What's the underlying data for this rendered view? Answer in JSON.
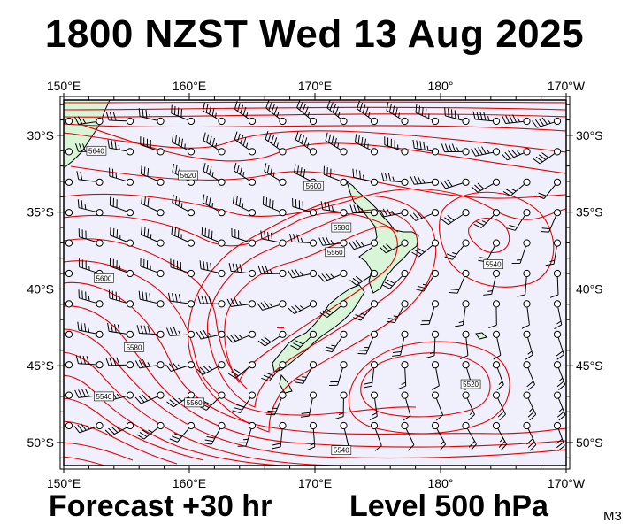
{
  "title": "1800 NZST Wed 13 Aug 2025",
  "footer": {
    "forecast": "Forecast +30 hr",
    "level": "Level 500 hPa",
    "code": "M3"
  },
  "map": {
    "lon_range": [
      150,
      190
    ],
    "lat_range": [
      -51.5,
      -27.7
    ],
    "lon_ticks": [
      {
        "lon": 150,
        "label": "150°E"
      },
      {
        "lon": 160,
        "label": "160°E"
      },
      {
        "lon": 170,
        "label": "170°E"
      },
      {
        "lon": 180,
        "label": "180°"
      },
      {
        "lon": 190,
        "label": "170°W"
      }
    ],
    "lat_ticks": [
      {
        "lat": -30,
        "label": "30°S"
      },
      {
        "lat": -35,
        "label": "35°S"
      },
      {
        "lat": -40,
        "label": "40°S"
      },
      {
        "lat": -45,
        "label": "45°S"
      },
      {
        "lat": -50,
        "label": "50°S"
      }
    ],
    "contour_labels": [
      {
        "text": "5640",
        "lon": 152.6,
        "lat": -31.0
      },
      {
        "text": "5620",
        "lon": 159.9,
        "lat": -32.6
      },
      {
        "text": "5600",
        "lon": 169.9,
        "lat": -33.3
      },
      {
        "text": "5580",
        "lon": 172.1,
        "lat": -36.0
      },
      {
        "text": "5560",
        "lon": 171.6,
        "lat": -37.6
      },
      {
        "text": "5600",
        "lon": 153.2,
        "lat": -39.3
      },
      {
        "text": "5580",
        "lon": 155.6,
        "lat": -43.8
      },
      {
        "text": "5540",
        "lon": 153.2,
        "lat": -47.0
      },
      {
        "text": "5560",
        "lon": 160.4,
        "lat": -47.4
      },
      {
        "text": "5540",
        "lon": 184.2,
        "lat": -38.4
      },
      {
        "text": "5520",
        "lon": 182.4,
        "lat": -46.2
      },
      {
        "text": "5540",
        "lon": 172.1,
        "lat": -50.5
      }
    ],
    "colors": {
      "ocean": "#f0f0fc",
      "land": "#d8f5d8",
      "contour": "#e60000",
      "wind": "#000000",
      "frame": "#000000"
    }
  }
}
